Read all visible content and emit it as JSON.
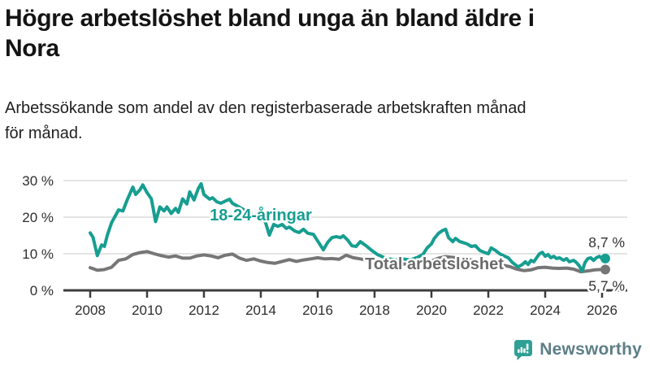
{
  "header": {
    "title_lines": [
      "Högre arbetslöshet bland unga än bland äldre i",
      "Nora"
    ],
    "subtitle_lines": [
      "Arbetssökande som andel av den registerbaserade arbetskraften månad",
      "för månad."
    ]
  },
  "chart_data": {
    "type": "line",
    "title": "Högre arbetslöshet bland unga än bland äldre i Nora",
    "subtitle": "Arbetssökande som andel av den registerbaserade arbetskraften månad för månad.",
    "grid": "horizontal-only",
    "x_axis": {
      "min": 2007.5,
      "max": 2026.8,
      "ticks": [
        {
          "v": 2008,
          "label": "2008"
        },
        {
          "v": 2010,
          "label": "2010"
        },
        {
          "v": 2012,
          "label": "2012"
        },
        {
          "v": 2014,
          "label": "2014"
        },
        {
          "v": 2016,
          "label": "2016"
        },
        {
          "v": 2018,
          "label": "2018"
        },
        {
          "v": 2020,
          "label": "2020"
        },
        {
          "v": 2022,
          "label": "2022"
        },
        {
          "v": 2024,
          "label": "2024"
        },
        {
          "v": 2026,
          "label": "2026"
        }
      ]
    },
    "y_axis": {
      "min": 0,
      "max": 30,
      "unit": "%",
      "ticks": [
        {
          "v": 0,
          "label": "0 %"
        },
        {
          "v": 10,
          "label": "10 %"
        },
        {
          "v": 20,
          "label": "20 %"
        },
        {
          "v": 30,
          "label": "30 %"
        }
      ]
    },
    "series": [
      {
        "name": "Total arbetslöshet",
        "color": "#767676",
        "label_color": "#6b6b6b",
        "label_anchor": {
          "x": 2020.1,
          "y": 7.3
        },
        "end_value_label": "5,7 %",
        "end_label_side": "below",
        "points": [
          [
            2008.0,
            6.2
          ],
          [
            2008.25,
            5.5
          ],
          [
            2008.5,
            5.7
          ],
          [
            2008.75,
            6.3
          ],
          [
            2009.0,
            8.2
          ],
          [
            2009.25,
            8.6
          ],
          [
            2009.5,
            9.8
          ],
          [
            2009.75,
            10.3
          ],
          [
            2010.0,
            10.6
          ],
          [
            2010.25,
            10.0
          ],
          [
            2010.5,
            9.5
          ],
          [
            2010.75,
            9.1
          ],
          [
            2011.0,
            9.4
          ],
          [
            2011.25,
            8.8
          ],
          [
            2011.5,
            8.8
          ],
          [
            2011.75,
            9.4
          ],
          [
            2012.0,
            9.7
          ],
          [
            2012.25,
            9.4
          ],
          [
            2012.5,
            8.9
          ],
          [
            2012.75,
            9.6
          ],
          [
            2013.0,
            9.9
          ],
          [
            2013.25,
            8.8
          ],
          [
            2013.5,
            8.2
          ],
          [
            2013.75,
            8.6
          ],
          [
            2014.0,
            8.0
          ],
          [
            2014.25,
            7.6
          ],
          [
            2014.5,
            7.4
          ],
          [
            2014.75,
            7.9
          ],
          [
            2015.0,
            8.4
          ],
          [
            2015.25,
            7.9
          ],
          [
            2015.5,
            8.3
          ],
          [
            2015.75,
            8.6
          ],
          [
            2016.0,
            8.9
          ],
          [
            2016.25,
            8.6
          ],
          [
            2016.5,
            8.7
          ],
          [
            2016.75,
            8.5
          ],
          [
            2017.0,
            9.6
          ],
          [
            2017.25,
            8.9
          ],
          [
            2017.5,
            8.6
          ],
          [
            2017.75,
            8.2
          ],
          [
            2018.0,
            7.9
          ],
          [
            2018.25,
            7.6
          ],
          [
            2018.5,
            7.4
          ],
          [
            2018.75,
            7.3
          ],
          [
            2019.0,
            7.2
          ],
          [
            2019.25,
            7.2
          ],
          [
            2019.5,
            7.3
          ],
          [
            2019.75,
            7.6
          ],
          [
            2020.0,
            8.0
          ],
          [
            2020.25,
            8.8
          ],
          [
            2020.5,
            9.2
          ],
          [
            2020.75,
            9.0
          ],
          [
            2021.0,
            8.8
          ],
          [
            2021.25,
            8.5
          ],
          [
            2021.5,
            8.2
          ],
          [
            2021.75,
            7.9
          ],
          [
            2022.0,
            7.6
          ],
          [
            2022.25,
            7.2
          ],
          [
            2022.5,
            6.9
          ],
          [
            2022.75,
            6.5
          ],
          [
            2023.0,
            5.8
          ],
          [
            2023.25,
            5.4
          ],
          [
            2023.5,
            5.6
          ],
          [
            2023.75,
            6.2
          ],
          [
            2024.0,
            6.3
          ],
          [
            2024.25,
            6.1
          ],
          [
            2024.5,
            6.0
          ],
          [
            2024.75,
            6.1
          ],
          [
            2025.0,
            5.8
          ],
          [
            2025.25,
            5.1
          ],
          [
            2025.5,
            5.3
          ],
          [
            2025.75,
            5.6
          ],
          [
            2026.0,
            5.7
          ]
        ]
      },
      {
        "name": "18-24-åringar",
        "color": "#179e91",
        "label_color": "#179e91",
        "label_anchor": {
          "x": 2014.0,
          "y": 20.7
        },
        "end_value_label": "8,7 %",
        "end_label_side": "above",
        "points": [
          [
            2008.0,
            15.7
          ],
          [
            2008.1,
            14.5
          ],
          [
            2008.25,
            9.5
          ],
          [
            2008.4,
            12.4
          ],
          [
            2008.5,
            12.0
          ],
          [
            2008.6,
            15.0
          ],
          [
            2008.75,
            18.5
          ],
          [
            2009.0,
            22.0
          ],
          [
            2009.15,
            21.7
          ],
          [
            2009.3,
            24.7
          ],
          [
            2009.5,
            28.2
          ],
          [
            2009.6,
            26.2
          ],
          [
            2009.75,
            27.5
          ],
          [
            2009.85,
            28.8
          ],
          [
            2010.0,
            26.7
          ],
          [
            2010.15,
            25.0
          ],
          [
            2010.3,
            18.8
          ],
          [
            2010.45,
            22.8
          ],
          [
            2010.6,
            21.7
          ],
          [
            2010.7,
            22.8
          ],
          [
            2010.85,
            21.0
          ],
          [
            2011.0,
            22.4
          ],
          [
            2011.1,
            21.3
          ],
          [
            2011.25,
            25.0
          ],
          [
            2011.4,
            23.6
          ],
          [
            2011.5,
            26.9
          ],
          [
            2011.65,
            24.7
          ],
          [
            2011.8,
            27.8
          ],
          [
            2011.9,
            29.1
          ],
          [
            2012.0,
            26.2
          ],
          [
            2012.2,
            24.9
          ],
          [
            2012.3,
            25.3
          ],
          [
            2012.45,
            24.2
          ],
          [
            2012.6,
            23.8
          ],
          [
            2012.75,
            24.4
          ],
          [
            2012.9,
            24.9
          ],
          [
            2013.0,
            23.8
          ],
          [
            2013.25,
            22.7
          ],
          [
            2013.5,
            21.6
          ],
          [
            2013.75,
            20.4
          ],
          [
            2014.0,
            19.3
          ],
          [
            2014.15,
            18.9
          ],
          [
            2014.3,
            15.1
          ],
          [
            2014.45,
            18.0
          ],
          [
            2014.6,
            17.5
          ],
          [
            2014.75,
            18.0
          ],
          [
            2014.9,
            16.9
          ],
          [
            2015.0,
            17.3
          ],
          [
            2015.2,
            16.2
          ],
          [
            2015.35,
            15.8
          ],
          [
            2015.5,
            16.7
          ],
          [
            2015.65,
            15.6
          ],
          [
            2015.85,
            15.3
          ],
          [
            2016.0,
            13.5
          ],
          [
            2016.2,
            11.1
          ],
          [
            2016.35,
            13.1
          ],
          [
            2016.5,
            14.4
          ],
          [
            2016.65,
            14.7
          ],
          [
            2016.8,
            14.4
          ],
          [
            2016.9,
            14.9
          ],
          [
            2017.05,
            13.8
          ],
          [
            2017.2,
            12.2
          ],
          [
            2017.35,
            12.0
          ],
          [
            2017.5,
            13.3
          ],
          [
            2017.7,
            12.2
          ],
          [
            2017.9,
            10.9
          ],
          [
            2018.1,
            9.8
          ],
          [
            2018.3,
            9.1
          ],
          [
            2018.5,
            8.6
          ],
          [
            2018.75,
            8.3
          ],
          [
            2019.0,
            8.6
          ],
          [
            2019.25,
            8.3
          ],
          [
            2019.5,
            9.0
          ],
          [
            2019.7,
            9.8
          ],
          [
            2019.85,
            11.6
          ],
          [
            2020.0,
            12.7
          ],
          [
            2020.1,
            14.2
          ],
          [
            2020.25,
            15.6
          ],
          [
            2020.4,
            16.4
          ],
          [
            2020.5,
            16.7
          ],
          [
            2020.6,
            14.4
          ],
          [
            2020.75,
            13.3
          ],
          [
            2020.85,
            14.2
          ],
          [
            2021.0,
            13.3
          ],
          [
            2021.1,
            13.1
          ],
          [
            2021.25,
            12.7
          ],
          [
            2021.4,
            12.0
          ],
          [
            2021.55,
            12.2
          ],
          [
            2021.7,
            10.9
          ],
          [
            2021.85,
            10.4
          ],
          [
            2022.0,
            10.0
          ],
          [
            2022.1,
            11.6
          ],
          [
            2022.25,
            10.9
          ],
          [
            2022.4,
            10.0
          ],
          [
            2022.55,
            9.4
          ],
          [
            2022.7,
            8.9
          ],
          [
            2022.85,
            7.6
          ],
          [
            2023.05,
            6.4
          ],
          [
            2023.2,
            7.1
          ],
          [
            2023.3,
            7.8
          ],
          [
            2023.4,
            7.1
          ],
          [
            2023.5,
            8.2
          ],
          [
            2023.6,
            7.8
          ],
          [
            2023.7,
            8.9
          ],
          [
            2023.8,
            10.0
          ],
          [
            2023.9,
            10.4
          ],
          [
            2024.0,
            9.3
          ],
          [
            2024.1,
            9.8
          ],
          [
            2024.2,
            8.9
          ],
          [
            2024.3,
            9.3
          ],
          [
            2024.4,
            8.7
          ],
          [
            2024.5,
            8.9
          ],
          [
            2024.65,
            8.2
          ],
          [
            2024.75,
            8.7
          ],
          [
            2024.85,
            7.8
          ],
          [
            2025.0,
            8.2
          ],
          [
            2025.1,
            7.6
          ],
          [
            2025.2,
            6.7
          ],
          [
            2025.3,
            5.2
          ],
          [
            2025.4,
            7.6
          ],
          [
            2025.5,
            8.7
          ],
          [
            2025.6,
            8.9
          ],
          [
            2025.7,
            8.2
          ],
          [
            2025.8,
            8.9
          ],
          [
            2025.9,
            9.3
          ],
          [
            2026.0,
            8.7
          ]
        ]
      }
    ],
    "colors": {
      "grid_line": "#dcdcdc",
      "axis_line": "#3c3c3c",
      "tick_text": "#2e2e2e",
      "end_label_text": "#333333"
    }
  },
  "branding": {
    "logo_text": "Newsworthy",
    "logo_text_color": "#5d7e86",
    "logo_icon_color": "#2fa096",
    "logo_icon_glyph_color": "#ffffff"
  }
}
